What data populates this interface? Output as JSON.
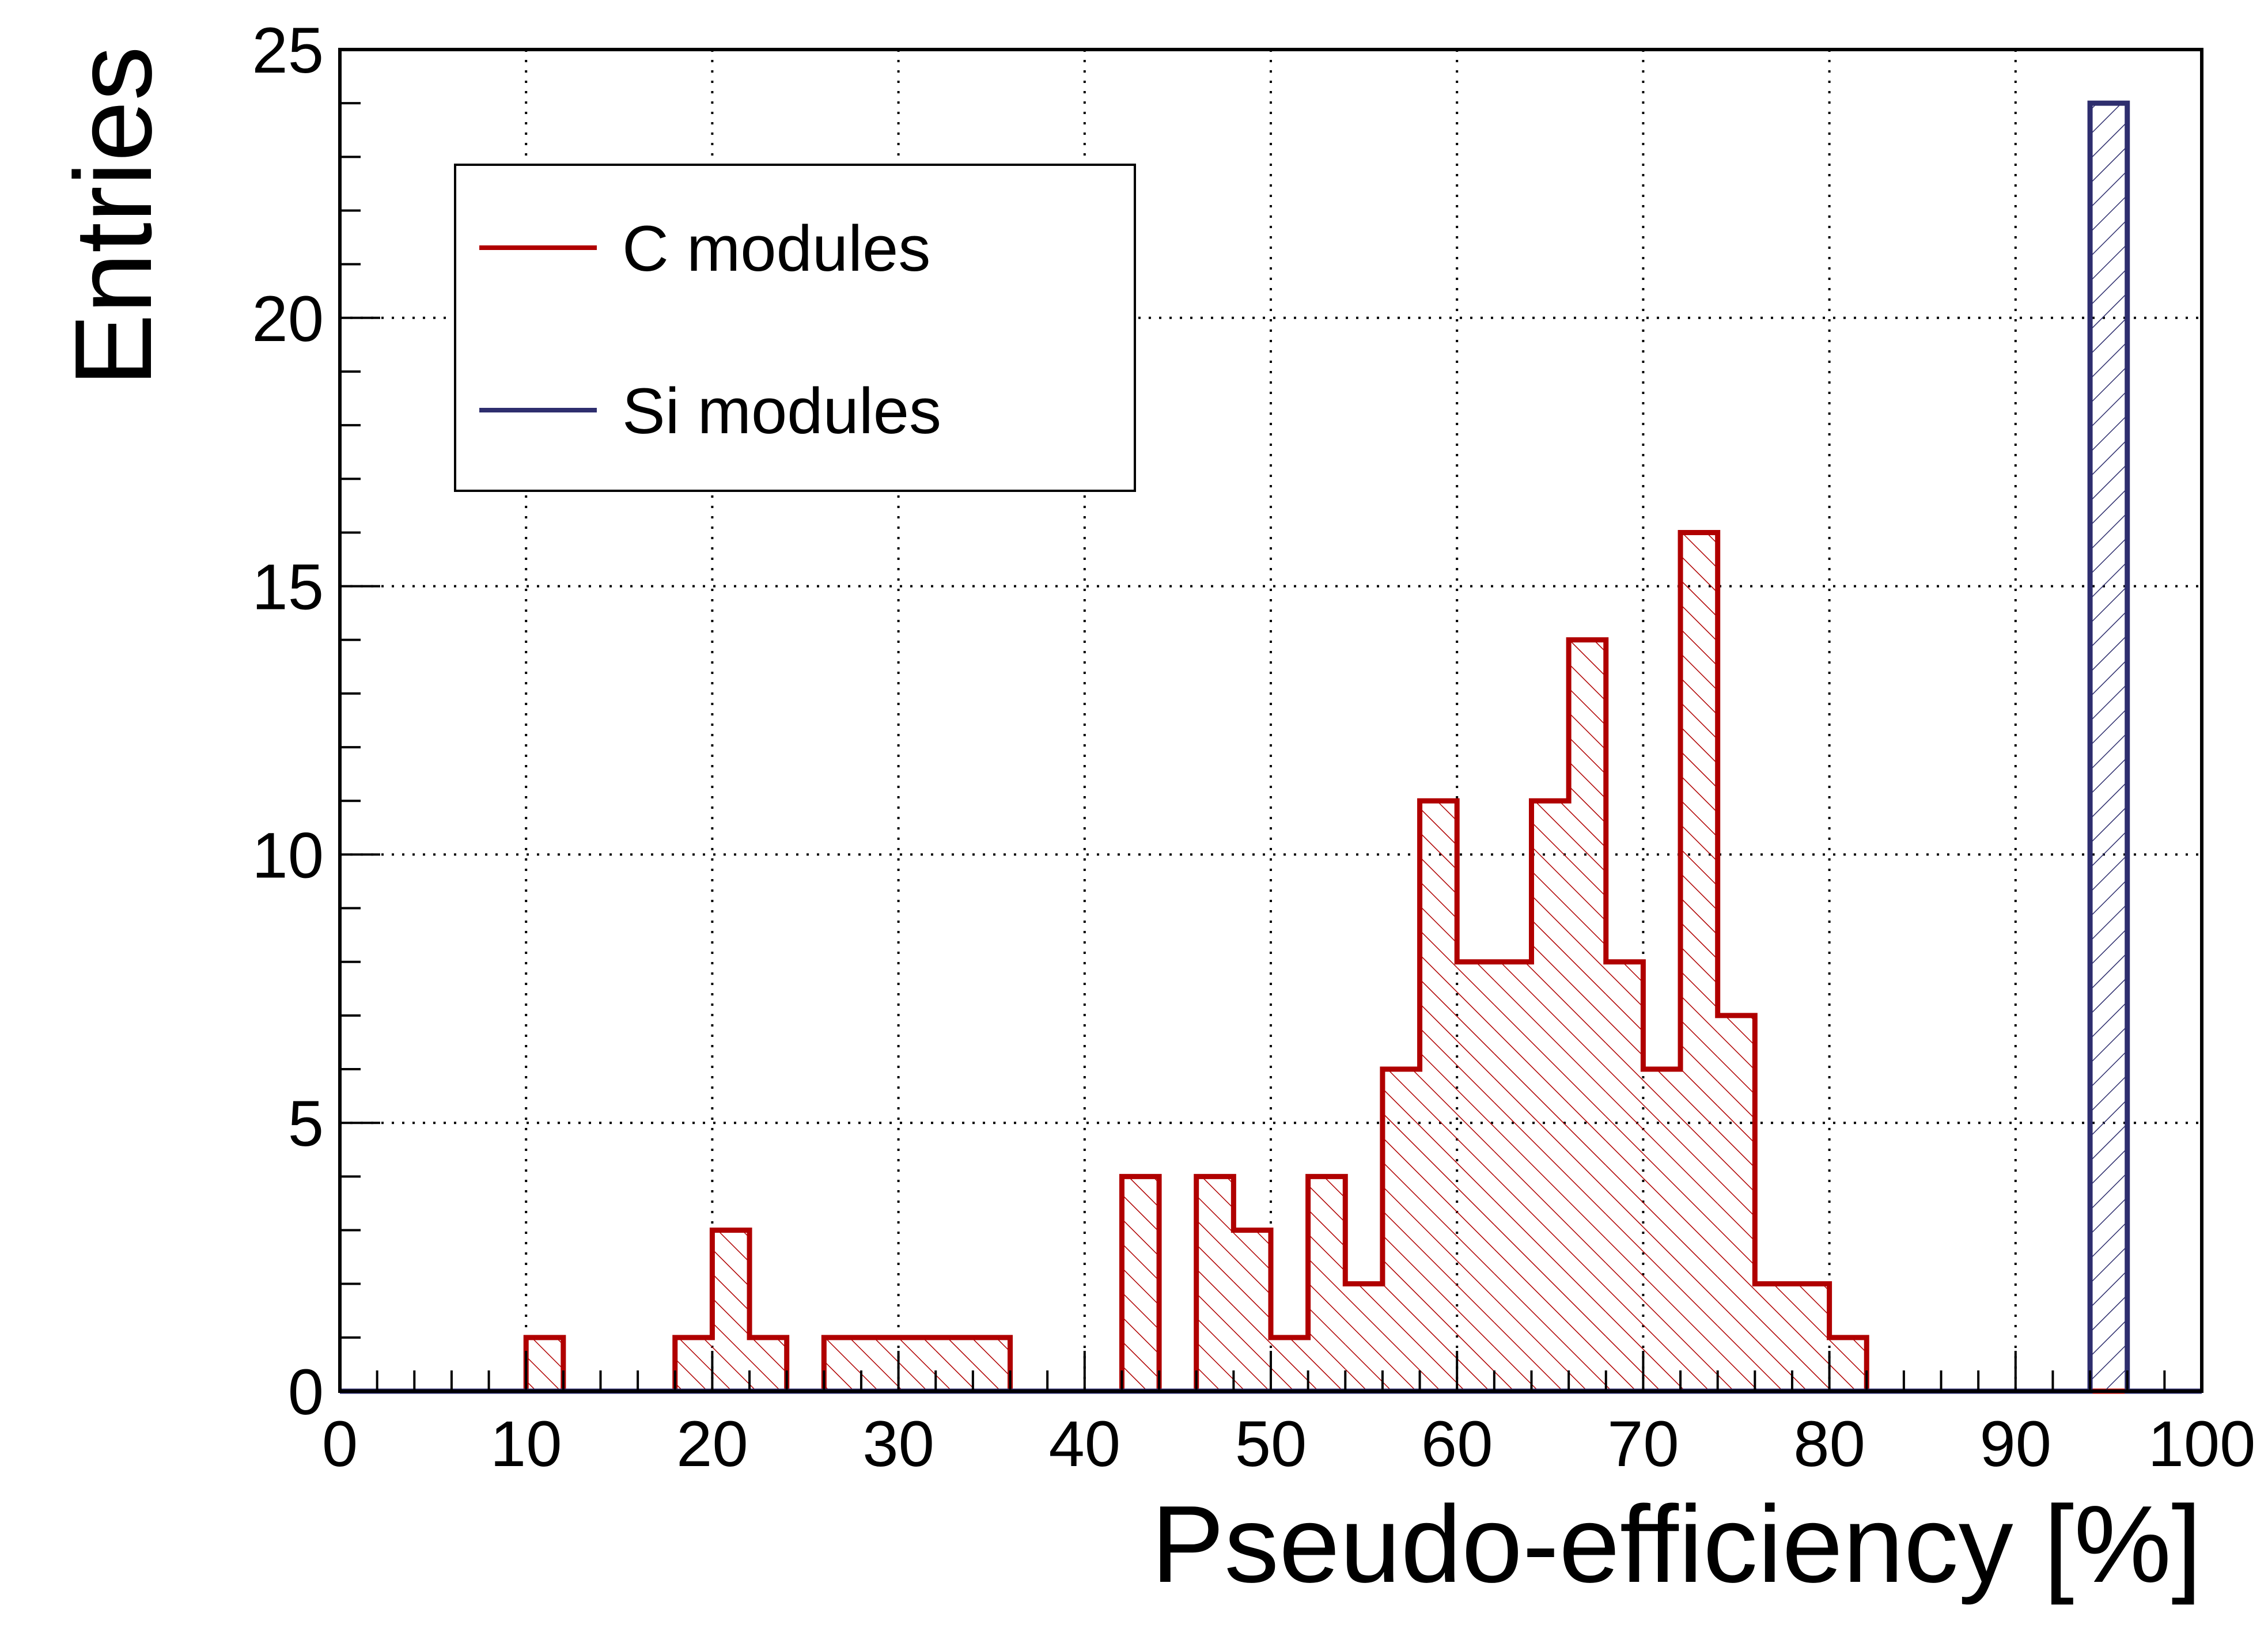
{
  "chart_data": {
    "type": "histogram",
    "xlabel": "Pseudo-efficiency [%]",
    "ylabel": "Entries",
    "xlim": [
      0,
      100
    ],
    "ylim": [
      0,
      25
    ],
    "bin_width": 2,
    "x_ticks": [
      "0",
      "10",
      "20",
      "30",
      "40",
      "50",
      "60",
      "70",
      "80",
      "90",
      "100"
    ],
    "y_ticks": [
      "0",
      "5",
      "10",
      "15",
      "20",
      "25"
    ],
    "grid": true,
    "legend_position": "top-left",
    "series": [
      {
        "name": "C modules",
        "color": "#b00000",
        "fill": "diagonal-hatch",
        "bin_edges_start": 10,
        "counts": [
          1,
          0,
          0,
          0,
          1,
          3,
          1,
          0,
          1,
          1,
          1,
          1,
          1,
          0,
          0,
          0,
          4,
          0,
          4,
          3,
          1,
          4,
          2,
          6,
          11,
          8,
          8,
          11,
          14,
          8,
          6,
          16,
          7,
          2,
          2,
          1
        ]
      },
      {
        "name": "Si modules",
        "color": "#2e2e6e",
        "fill": "diagonal-hatch",
        "bin_edges_start": 94,
        "counts": [
          24
        ]
      }
    ]
  }
}
